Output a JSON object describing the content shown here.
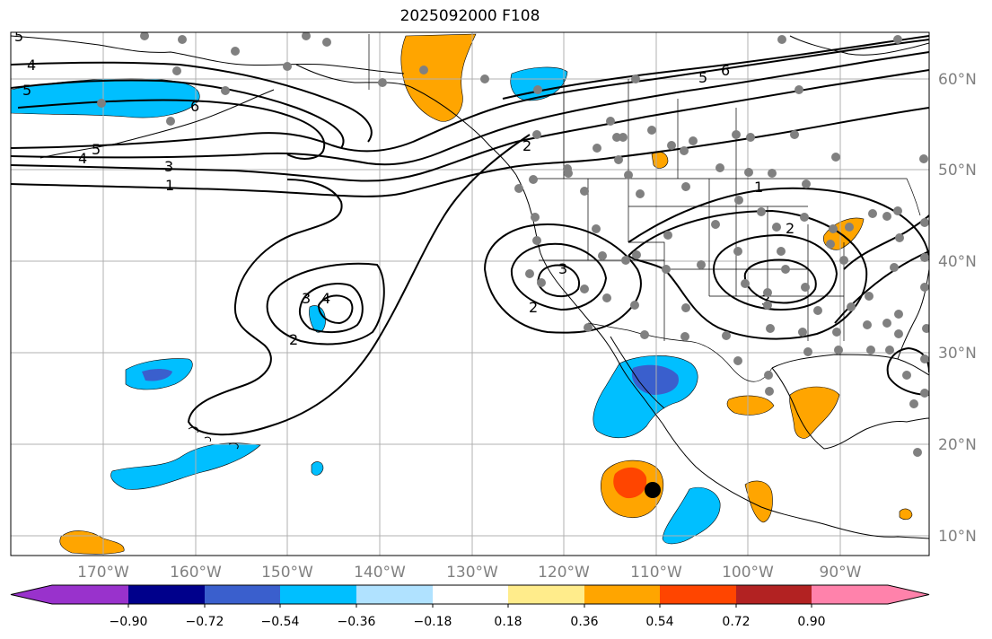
{
  "title": "2025092000 F108",
  "lon_labels": [
    "170°W",
    "160°W",
    "150°W",
    "140°W",
    "130°W",
    "120°W",
    "110°W",
    "100°W",
    "90°W"
  ],
  "lat_labels": [
    "60°N",
    "50°N",
    "40°N",
    "30°N",
    "20°N",
    "10°N"
  ],
  "colorbar": {
    "colors": [
      "#9932cc",
      "#00008b",
      "#3a5fcd",
      "#00bfff",
      "#b0e2ff",
      "#ffffff",
      "#ffec8b",
      "#ffa500",
      "#ff4500",
      "#b22222",
      "#ff82ab"
    ],
    "tick_labels": [
      "−0.90",
      "−0.72",
      "−0.54",
      "−0.36",
      "−0.18",
      "0.18",
      "0.36",
      "0.54",
      "0.72",
      "0.90"
    ]
  },
  "contour_labels": [
    "5",
    "4",
    "5",
    "6",
    "5",
    "4",
    "3",
    "1",
    "6",
    "5",
    "2",
    "2",
    "3",
    "3",
    "4",
    "2",
    "3",
    "2",
    "1",
    "3",
    "2"
  ],
  "marker": {
    "description": "storm-center",
    "color": "#000000"
  },
  "station_color": "#808080",
  "colors": {
    "grid": "#b0b0b0",
    "coast": "#000000",
    "contour": "#000000",
    "positive_orange": "#ffa500",
    "positive_red": "#ff4500",
    "negative_blue": "#00bfff",
    "negative_dark": "#3a5fcd"
  }
}
